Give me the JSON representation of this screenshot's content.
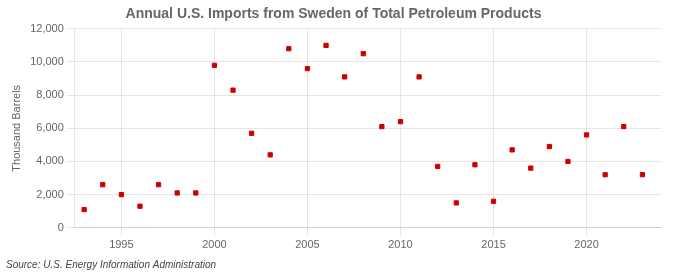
{
  "chart_data": {
    "type": "scatter",
    "title": "Annual U.S. Imports from Sweden of Total Petroleum Products",
    "ylabel": "Thousand Barrels",
    "annotations": [
      "Source: U.S. Energy Information Administration"
    ],
    "x": [
      1993,
      1994,
      1995,
      1996,
      1997,
      1998,
      1999,
      2000,
      2001,
      2002,
      2003,
      2004,
      2005,
      2006,
      2007,
      2008,
      2009,
      2010,
      2011,
      2012,
      2013,
      2014,
      2015,
      2016,
      2017,
      2018,
      2019,
      2020,
      2021,
      2022,
      2023
    ],
    "values": [
      1100,
      2600,
      2000,
      1300,
      2600,
      2100,
      2100,
      9800,
      8300,
      5700,
      4400,
      10800,
      9600,
      11000,
      9100,
      10500,
      6100,
      6400,
      9100,
      3700,
      1500,
      3800,
      1600,
      4700,
      3600,
      4900,
      4000,
      5600,
      3200,
      6100,
      3200
    ],
    "color": "#cc0000",
    "marker": "square",
    "xlim": [
      1992.5,
      2024
    ],
    "xticks": [
      1995,
      2000,
      2005,
      2010,
      2015,
      2020
    ],
    "ylim": [
      0,
      12000
    ],
    "yticks": [
      0,
      {
        "value": 2000,
        "label": "2,000"
      },
      {
        "value": 4000,
        "label": "4,000"
      },
      {
        "value": 6000,
        "label": "6,000"
      },
      {
        "value": 8000,
        "label": "8,000"
      },
      {
        "value": 10000,
        "label": "10,000"
      },
      {
        "value": 12000,
        "label": "12,000"
      }
    ],
    "grid": true
  }
}
